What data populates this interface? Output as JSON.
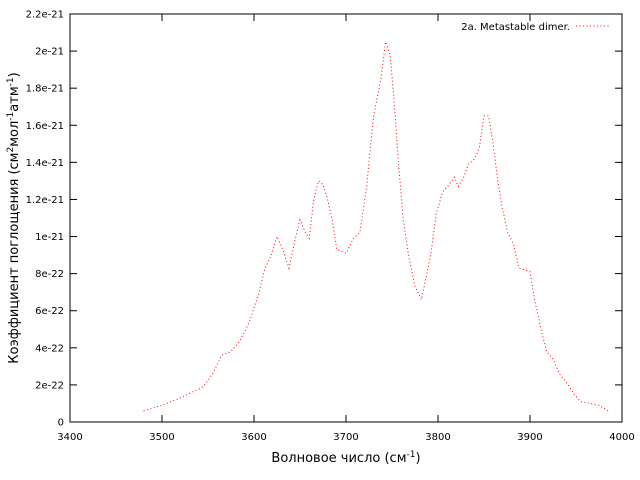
{
  "chart_data": {
    "type": "line",
    "xlabel_parts": [
      "Волновое число (см",
      "-1",
      ")"
    ],
    "ylabel_parts": [
      "Коэффициент поглощения (см",
      "2",
      "мол",
      "-1",
      "атм",
      "-1",
      ")"
    ],
    "xlim": [
      3400,
      4000
    ],
    "xticks": [
      3400,
      3500,
      3600,
      3700,
      3800,
      3900,
      4000
    ],
    "ylim": [
      0,
      2.2e-21
    ],
    "yticks": [
      0,
      2e-22,
      4e-22,
      6e-22,
      8e-22,
      1e-21,
      1.2e-21,
      1.4e-21,
      1.6e-21,
      1.8e-21,
      2e-21,
      2.2e-21
    ],
    "legend": "top-right",
    "series": [
      {
        "name": "2a. Metastable dimer.",
        "color": "#ff0000",
        "x": [
          3480,
          3500,
          3520,
          3545,
          3555,
          3565,
          3575,
          3585,
          3595,
          3605,
          3612,
          3618,
          3625,
          3632,
          3638,
          3645,
          3650,
          3656,
          3660,
          3665,
          3670,
          3675,
          3680,
          3685,
          3690,
          3695,
          3700,
          3708,
          3715,
          3722,
          3730,
          3738,
          3743,
          3748,
          3752,
          3757,
          3762,
          3768,
          3775,
          3782,
          3787,
          3792,
          3798,
          3805,
          3812,
          3818,
          3822,
          3828,
          3833,
          3840,
          3845,
          3850,
          3855,
          3860,
          3865,
          3870,
          3876,
          3882,
          3888,
          3895,
          3900,
          3905,
          3912,
          3918,
          3925,
          3932,
          3940,
          3948,
          3955,
          3965,
          3975,
          3985
        ],
        "values": [
          6e-23,
          9e-23,
          1.3e-22,
          1.9e-22,
          2.6e-22,
          3.6e-22,
          3.8e-22,
          4.4e-22,
          5.4e-22,
          6.9e-22,
          8.3e-22,
          8.9e-22,
          1e-21,
          9.2e-22,
          8.3e-22,
          9.9e-22,
          1.09e-21,
          1.02e-21,
          9.9e-22,
          1.2e-21,
          1.3e-21,
          1.28e-21,
          1.2e-21,
          1.09e-21,
          9.3e-22,
          9.2e-22,
          9.1e-22,
          9.9e-22,
          1.02e-21,
          1.25e-21,
          1.65e-21,
          1.85e-21,
          2.05e-21,
          1.98e-21,
          1.75e-21,
          1.4e-21,
          1.1e-21,
          9e-22,
          7.3e-22,
          6.6e-22,
          7.8e-22,
          9e-22,
          1.12e-21,
          1.24e-21,
          1.28e-21,
          1.32e-21,
          1.27e-21,
          1.32e-21,
          1.39e-21,
          1.42e-21,
          1.48e-21,
          1.65e-21,
          1.65e-21,
          1.5e-21,
          1.3e-21,
          1.15e-21,
          1.02e-21,
          9.6e-22,
          8.3e-22,
          8.2e-22,
          8.1e-22,
          6.6e-22,
          5e-22,
          3.8e-22,
          3.4e-22,
          2.6e-22,
          2.1e-22,
          1.5e-22,
          1.1e-22,
          1e-22,
          9e-23,
          6e-23
        ]
      }
    ]
  }
}
